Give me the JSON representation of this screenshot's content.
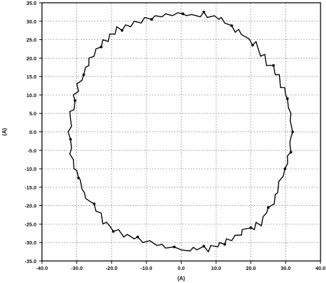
{
  "chart_data": {
    "type": "line",
    "xlabel": "(A)",
    "ylabel": "(A)",
    "xlim": [
      -40,
      40
    ],
    "ylim": [
      -35,
      35
    ],
    "xticks": [
      "-40.0",
      "-30.0",
      "-20.0",
      "-10.0",
      "0.0",
      "10.0",
      "20.0",
      "30.0",
      "40.0"
    ],
    "yticks": [
      "35.0",
      "30.0",
      "25.0",
      "20.0",
      "15.0",
      "10.0",
      "5.0",
      "0.0",
      "-5.0",
      "-10.0",
      "-15.0",
      "-20.0",
      "-25.0",
      "-30.0",
      "-35.0"
    ],
    "grid": true,
    "series": [
      {
        "points": [
          [
            0.5,
            32.0
          ],
          [
            1.5,
            31.5
          ],
          [
            3.0,
            31.8
          ],
          [
            5.5,
            31.2
          ],
          [
            6.5,
            32.5
          ],
          [
            7.5,
            31.0
          ],
          [
            9.5,
            31.5
          ],
          [
            10.8,
            30.5
          ],
          [
            11.5,
            31.0
          ],
          [
            12.5,
            29.5
          ],
          [
            14.5,
            28.8
          ],
          [
            15.5,
            27.0
          ],
          [
            16.5,
            27.8
          ],
          [
            17.2,
            26.5
          ],
          [
            18.0,
            26.0
          ],
          [
            19.5,
            25.2
          ],
          [
            20.5,
            23.5
          ],
          [
            21.5,
            24.5
          ],
          [
            22.0,
            22.8
          ],
          [
            22.8,
            20.5
          ],
          [
            24.0,
            21.0
          ],
          [
            24.5,
            18.0
          ],
          [
            26.5,
            18.0
          ],
          [
            27.0,
            15.5
          ],
          [
            28.2,
            15.5
          ],
          [
            28.5,
            12.0
          ],
          [
            29.7,
            12.0
          ],
          [
            30.0,
            10.0
          ],
          [
            30.5,
            9.0
          ],
          [
            30.8,
            6.5
          ],
          [
            31.5,
            5.0
          ],
          [
            31.3,
            3.0
          ],
          [
            32.0,
            0.0
          ],
          [
            31.5,
            -1.5
          ],
          [
            31.2,
            -3.0
          ],
          [
            31.5,
            -5.5
          ],
          [
            30.5,
            -6.5
          ],
          [
            30.6,
            -8.5
          ],
          [
            29.8,
            -10.0
          ],
          [
            29.3,
            -12.0
          ],
          [
            28.0,
            -13.5
          ],
          [
            27.7,
            -16.5
          ],
          [
            27.0,
            -17.0
          ],
          [
            26.7,
            -19.5
          ],
          [
            25.0,
            -20.5
          ],
          [
            24.5,
            -22.0
          ],
          [
            23.5,
            -23.0
          ],
          [
            23.0,
            -25.5
          ],
          [
            21.5,
            -24.5
          ],
          [
            21.0,
            -26.5
          ],
          [
            20.0,
            -26.0
          ],
          [
            17.5,
            -26.5
          ],
          [
            17.3,
            -28.0
          ],
          [
            15.5,
            -28.0
          ],
          [
            14.5,
            -29.5
          ],
          [
            13.0,
            -29.0
          ],
          [
            12.5,
            -30.5
          ],
          [
            11.0,
            -30.0
          ],
          [
            10.5,
            -31.2
          ],
          [
            8.5,
            -30.8
          ],
          [
            7.8,
            -32.5
          ],
          [
            6.5,
            -31.0
          ],
          [
            4.5,
            -32.0
          ],
          [
            3.5,
            -31.3
          ],
          [
            2.5,
            -32.3
          ],
          [
            0.0,
            -32.0
          ],
          [
            -2.0,
            -31.2
          ],
          [
            -4.5,
            -31.5
          ],
          [
            -5.5,
            -30.5
          ],
          [
            -7.0,
            -30.8
          ],
          [
            -9.0,
            -29.5
          ],
          [
            -11.0,
            -30.0
          ],
          [
            -12.5,
            -28.5
          ],
          [
            -13.5,
            -29.0
          ],
          [
            -15.5,
            -27.8
          ],
          [
            -16.5,
            -28.5
          ],
          [
            -18.0,
            -26.5
          ],
          [
            -19.5,
            -27.0
          ],
          [
            -20.5,
            -25.5
          ],
          [
            -21.5,
            -24.5
          ],
          [
            -22.5,
            -25.0
          ],
          [
            -23.0,
            -22.0
          ],
          [
            -24.5,
            -21.5
          ],
          [
            -25.0,
            -19.5
          ],
          [
            -26.0,
            -19.0
          ],
          [
            -27.5,
            -18.0
          ],
          [
            -27.8,
            -16.5
          ],
          [
            -28.5,
            -15.5
          ],
          [
            -29.0,
            -13.0
          ],
          [
            -29.5,
            -12.5
          ],
          [
            -30.0,
            -10.5
          ],
          [
            -30.8,
            -10.0
          ],
          [
            -31.0,
            -7.5
          ],
          [
            -32.0,
            -6.0
          ],
          [
            -31.5,
            -4.5
          ],
          [
            -31.8,
            -2.0
          ],
          [
            -32.5,
            0.0
          ],
          [
            -31.5,
            1.5
          ],
          [
            -31.8,
            3.5
          ],
          [
            -32.0,
            5.5
          ],
          [
            -30.8,
            6.0
          ],
          [
            -30.5,
            8.5
          ],
          [
            -31.0,
            10.0
          ],
          [
            -29.5,
            11.0
          ],
          [
            -30.0,
            13.0
          ],
          [
            -28.5,
            14.0
          ],
          [
            -28.0,
            15.5
          ],
          [
            -27.5,
            17.5
          ],
          [
            -26.5,
            18.0
          ],
          [
            -26.5,
            20.0
          ],
          [
            -25.0,
            20.5
          ],
          [
            -24.5,
            22.5
          ],
          [
            -23.0,
            23.0
          ],
          [
            -22.5,
            25.0
          ],
          [
            -21.0,
            24.5
          ],
          [
            -20.5,
            26.5
          ],
          [
            -19.0,
            26.5
          ],
          [
            -18.5,
            28.5
          ],
          [
            -17.0,
            27.5
          ],
          [
            -16.0,
            29.0
          ],
          [
            -14.5,
            28.5
          ],
          [
            -13.5,
            30.0
          ],
          [
            -11.5,
            29.5
          ],
          [
            -10.5,
            31.0
          ],
          [
            -8.5,
            30.5
          ],
          [
            -7.5,
            31.5
          ],
          [
            -5.5,
            31.2
          ],
          [
            -4.5,
            32.0
          ],
          [
            -2.5,
            31.5
          ],
          [
            -1.0,
            32.3
          ],
          [
            0.5,
            32.0
          ]
        ],
        "marker_indices": [
          0,
          4,
          10,
          16,
          22,
          28,
          32,
          35,
          38,
          44,
          50,
          56,
          61,
          66,
          72,
          77,
          83,
          89,
          95,
          101,
          106,
          112,
          118,
          124
        ]
      }
    ]
  }
}
